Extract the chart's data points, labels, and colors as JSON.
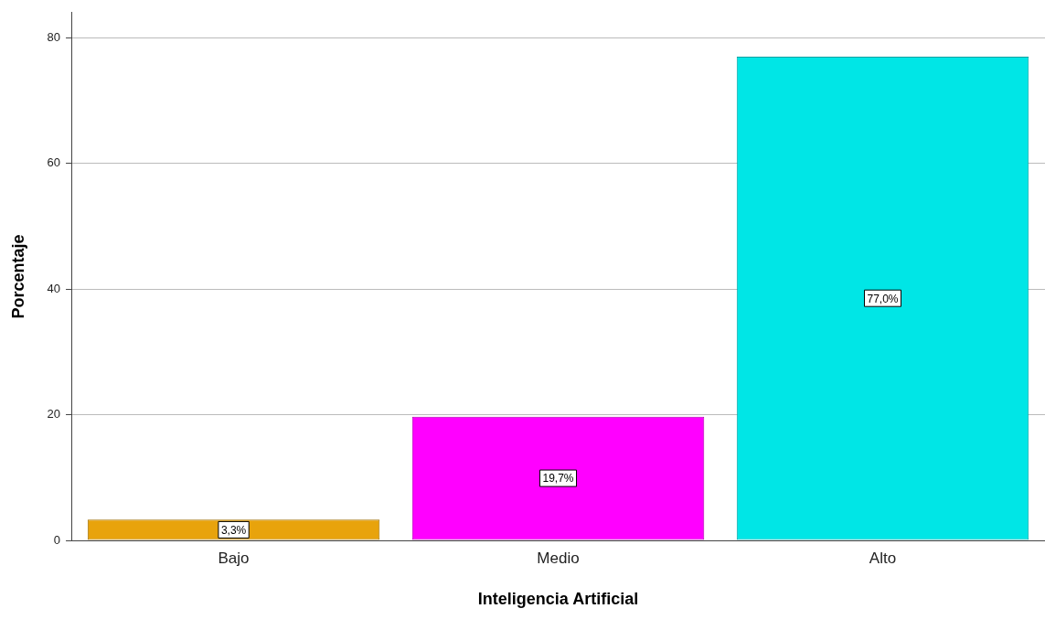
{
  "chart_data": {
    "type": "bar",
    "xlabel": "Inteligencia Artificial",
    "ylabel": "Porcentaje",
    "categories": [
      "Bajo",
      "Medio",
      "Alto"
    ],
    "values": [
      3.3,
      19.7,
      77.0
    ],
    "colors": [
      "#e8a30c",
      "#ff00ff",
      "#00e6e6"
    ],
    "value_labels": [
      "3,3%",
      "19,7%",
      "77,0%"
    ],
    "ylim": [
      0,
      84
    ],
    "yticks": [
      0,
      20,
      40,
      60,
      80
    ],
    "grid": "y",
    "legend": false
  }
}
